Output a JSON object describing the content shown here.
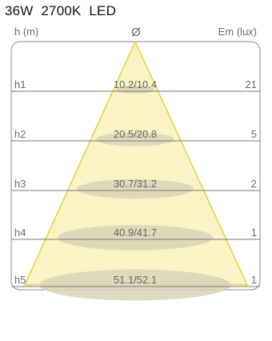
{
  "title": "36W  2700K  LED",
  "axis": {
    "left_label": "h (m)",
    "center_symbol": "Ø",
    "right_label": "Em (lux)"
  },
  "colors": {
    "cone_fill": "#fbf3c6",
    "cone_stroke": "#e8d040",
    "ellipse_fill": "#d9d3b6",
    "frame_stroke": "#8a8a8a",
    "line_stroke": "#7a7a7a"
  },
  "rows": [
    {
      "h": "h1",
      "diameter": "10.2/10.4",
      "lux": "21"
    },
    {
      "h": "h2",
      "diameter": "20.5/20.8",
      "lux": "5"
    },
    {
      "h": "h3",
      "diameter": "30.7/31.2",
      "lux": "2"
    },
    {
      "h": "h4",
      "diameter": "40.9/41.7",
      "lux": "1"
    },
    {
      "h": "h5",
      "diameter": "51.1/52.1",
      "lux": "1"
    }
  ]
}
